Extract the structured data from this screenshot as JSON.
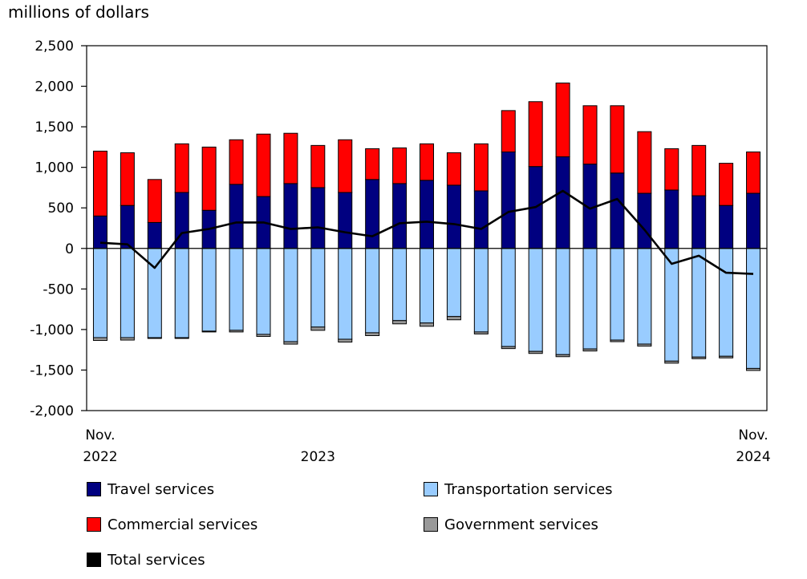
{
  "chart_data": {
    "type": "bar",
    "stacked": true,
    "ylabel": "millions of dollars",
    "ylim": [
      -2000,
      2500
    ],
    "yticks": [
      2500,
      2000,
      1500,
      1000,
      500,
      0,
      -500,
      -1000,
      -1500,
      -2000
    ],
    "ytick_labels": [
      "2,500",
      "2,000",
      "1,500",
      "1,000",
      "500",
      "0",
      "-500",
      "-1,000",
      "-1,500",
      "-2,000"
    ],
    "x_labels": [
      {
        "index": 0,
        "lines": [
          "Nov.",
          "2022"
        ]
      },
      {
        "index": 8,
        "lines": [
          "",
          "2023"
        ]
      },
      {
        "index": 24,
        "lines": [
          "Nov.",
          "2024"
        ]
      }
    ],
    "categories": [
      "2022-11",
      "2022-12",
      "2023-01",
      "2023-02",
      "2023-03",
      "2023-04",
      "2023-05",
      "2023-06",
      "2023-07",
      "2023-08",
      "2023-09",
      "2023-10",
      "2023-11",
      "2023-12",
      "2024-01",
      "2024-02",
      "2024-03",
      "2024-04",
      "2024-05",
      "2024-06",
      "2024-07",
      "2024-08",
      "2024-09",
      "2024-10",
      "2024-11"
    ],
    "series": [
      {
        "name": "Travel services",
        "color": "#000080",
        "kind": "bar",
        "values": [
          400,
          530,
          320,
          690,
          470,
          790,
          640,
          800,
          750,
          690,
          850,
          800,
          840,
          780,
          710,
          1190,
          1010,
          1130,
          1040,
          930,
          680,
          720,
          650,
          530,
          680
        ]
      },
      {
        "name": "Commercial services",
        "color": "#ff0000",
        "kind": "bar",
        "values": [
          800,
          650,
          530,
          600,
          780,
          550,
          770,
          620,
          520,
          650,
          380,
          440,
          450,
          400,
          580,
          510,
          800,
          910,
          720,
          830,
          760,
          510,
          620,
          520,
          510
        ]
      },
      {
        "name": "Transportation services",
        "color": "#99ccff",
        "kind": "bar",
        "values": [
          -1100,
          -1100,
          -1100,
          -1100,
          -1020,
          -1010,
          -1060,
          -1150,
          -970,
          -1120,
          -1040,
          -890,
          -920,
          -840,
          -1030,
          -1210,
          -1270,
          -1310,
          -1240,
          -1130,
          -1180,
          -1390,
          -1340,
          -1330,
          -1480
        ]
      },
      {
        "name": "Government services",
        "color": "#999999",
        "kind": "bar",
        "values": [
          -35,
          -30,
          -10,
          -10,
          -10,
          -20,
          -25,
          -30,
          -40,
          -35,
          -35,
          -40,
          -40,
          -40,
          -25,
          -25,
          -25,
          -25,
          -25,
          -20,
          -25,
          -25,
          -20,
          -20,
          -25
        ]
      },
      {
        "name": "Total services",
        "color": "#000000",
        "kind": "line",
        "values": [
          70,
          50,
          -240,
          190,
          240,
          320,
          320,
          240,
          260,
          200,
          150,
          310,
          330,
          300,
          240,
          450,
          510,
          710,
          490,
          610,
          230,
          -190,
          -90,
          -300,
          -315
        ]
      }
    ],
    "legend": [
      {
        "label": "Travel services",
        "color": "#000080"
      },
      {
        "label": "Transportation services",
        "color": "#99ccff"
      },
      {
        "label": "Commercial services",
        "color": "#ff0000"
      },
      {
        "label": "Government services",
        "color": "#999999"
      },
      {
        "label": "Total services",
        "color": "#000000"
      }
    ],
    "grid": false
  }
}
